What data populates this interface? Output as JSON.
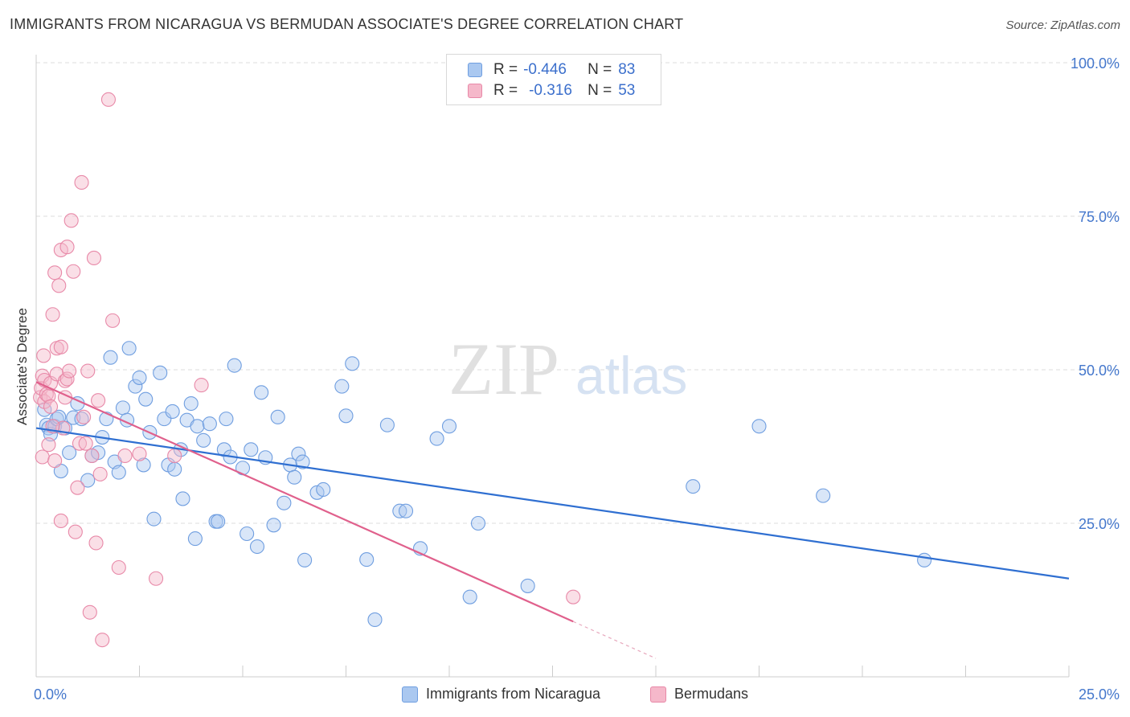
{
  "header": {
    "title": "IMMIGRANTS FROM NICARAGUA VS BERMUDAN ASSOCIATE'S DEGREE CORRELATION CHART",
    "source": "Source: ZipAtlas.com"
  },
  "watermark": {
    "zip": "ZIP",
    "atlas": "atlas"
  },
  "legend": {
    "r_label": "R =",
    "n_label": "N =",
    "rows": [
      {
        "r": "-0.446",
        "n": "83"
      },
      {
        "r": "-0.316",
        "n": "53"
      }
    ]
  },
  "colors": {
    "blue_fill": "#aac8f0",
    "blue_stroke": "#6f9ee0",
    "blue_line": "#2f6fd1",
    "pink_fill": "#f5b8ca",
    "pink_stroke": "#e889a8",
    "pink_line": "#e0608c",
    "tick_text": "#4477cc",
    "grid": "#dddddd"
  },
  "chart_data": {
    "type": "scatter",
    "title": "IMMIGRANTS FROM NICARAGUA VS BERMUDAN ASSOCIATE'S DEGREE CORRELATION CHART",
    "xlabel": "",
    "ylabel": "Associate's Degree",
    "xlim": [
      0,
      25
    ],
    "ylim": [
      0,
      100
    ],
    "x_tick_labels": [
      "0.0%",
      "25.0%"
    ],
    "y_tick_labels": [
      "100.0%",
      "75.0%",
      "50.0%",
      "25.0%"
    ],
    "y_ticks": [
      100,
      75,
      50,
      25
    ],
    "grid": true,
    "legend_position": "top-center",
    "series": [
      {
        "name": "Immigrants from Nicaragua",
        "color": "blue",
        "trend": {
          "x": [
            0,
            25
          ],
          "y": [
            40.5,
            16.0
          ]
        },
        "points": [
          [
            0.2,
            43.5
          ],
          [
            0.25,
            41.0
          ],
          [
            0.3,
            40.5
          ],
          [
            0.35,
            39.5
          ],
          [
            0.45,
            40.8
          ],
          [
            0.5,
            42.0
          ],
          [
            0.6,
            33.5
          ],
          [
            0.7,
            40.5
          ],
          [
            0.8,
            36.5
          ],
          [
            0.9,
            42.2
          ],
          [
            1.0,
            44.5
          ],
          [
            1.1,
            42.0
          ],
          [
            1.25,
            32.0
          ],
          [
            1.35,
            36.0
          ],
          [
            1.5,
            36.5
          ],
          [
            1.6,
            39.0
          ],
          [
            1.7,
            42.0
          ],
          [
            1.8,
            52.0
          ],
          [
            1.9,
            35.0
          ],
          [
            2.0,
            33.3
          ],
          [
            2.1,
            43.8
          ],
          [
            2.2,
            41.8
          ],
          [
            2.25,
            53.5
          ],
          [
            2.4,
            47.3
          ],
          [
            2.5,
            48.7
          ],
          [
            2.6,
            34.5
          ],
          [
            2.65,
            45.2
          ],
          [
            2.75,
            39.8
          ],
          [
            2.85,
            25.7
          ],
          [
            3.0,
            49.5
          ],
          [
            3.1,
            42.0
          ],
          [
            3.2,
            34.5
          ],
          [
            3.3,
            43.2
          ],
          [
            3.35,
            33.8
          ],
          [
            3.5,
            37.0
          ],
          [
            3.55,
            29.0
          ],
          [
            3.65,
            41.8
          ],
          [
            3.75,
            44.5
          ],
          [
            3.85,
            22.5
          ],
          [
            3.9,
            40.8
          ],
          [
            4.05,
            38.5
          ],
          [
            4.2,
            41.2
          ],
          [
            4.35,
            25.3
          ],
          [
            4.4,
            25.3
          ],
          [
            4.55,
            37.0
          ],
          [
            4.6,
            42.0
          ],
          [
            4.7,
            35.8
          ],
          [
            4.8,
            50.7
          ],
          [
            5.0,
            34.0
          ],
          [
            5.1,
            23.3
          ],
          [
            5.2,
            37.0
          ],
          [
            5.35,
            21.2
          ],
          [
            5.45,
            46.3
          ],
          [
            5.55,
            35.7
          ],
          [
            5.75,
            24.7
          ],
          [
            5.85,
            42.3
          ],
          [
            6.0,
            28.3
          ],
          [
            6.15,
            34.5
          ],
          [
            6.25,
            32.5
          ],
          [
            6.35,
            36.3
          ],
          [
            6.45,
            35.0
          ],
          [
            6.5,
            19.0
          ],
          [
            6.8,
            30.0
          ],
          [
            6.95,
            30.5
          ],
          [
            7.4,
            47.3
          ],
          [
            7.5,
            42.5
          ],
          [
            7.65,
            51.0
          ],
          [
            8.0,
            19.1
          ],
          [
            8.2,
            9.3
          ],
          [
            8.5,
            41.0
          ],
          [
            8.8,
            27.0
          ],
          [
            8.95,
            27.0
          ],
          [
            9.3,
            20.9
          ],
          [
            9.7,
            38.8
          ],
          [
            10.0,
            40.8
          ],
          [
            10.5,
            13.0
          ],
          [
            10.7,
            25.0
          ],
          [
            11.9,
            14.8
          ],
          [
            15.9,
            31.0
          ],
          [
            17.5,
            40.8
          ],
          [
            19.05,
            29.5
          ],
          [
            21.5,
            19.0
          ],
          [
            0.55,
            42.3
          ]
        ]
      },
      {
        "name": "Bermudans",
        "color": "pink",
        "trend": {
          "x": [
            0,
            15
          ],
          "y": [
            48.0,
            3.0
          ]
        },
        "points": [
          [
            0.1,
            45.5
          ],
          [
            0.12,
            47.0
          ],
          [
            0.15,
            49.0
          ],
          [
            0.15,
            35.8
          ],
          [
            0.18,
            52.3
          ],
          [
            0.2,
            48.3
          ],
          [
            0.2,
            44.8
          ],
          [
            0.25,
            46.0
          ],
          [
            0.3,
            37.8
          ],
          [
            0.3,
            45.7
          ],
          [
            0.35,
            47.8
          ],
          [
            0.35,
            44.0
          ],
          [
            0.4,
            59.0
          ],
          [
            0.45,
            65.8
          ],
          [
            0.45,
            35.2
          ],
          [
            0.5,
            49.3
          ],
          [
            0.5,
            53.5
          ],
          [
            0.55,
            63.7
          ],
          [
            0.6,
            53.7
          ],
          [
            0.6,
            69.5
          ],
          [
            0.6,
            25.4
          ],
          [
            0.65,
            40.5
          ],
          [
            0.7,
            48.2
          ],
          [
            0.7,
            45.5
          ],
          [
            0.75,
            70.0
          ],
          [
            0.75,
            48.5
          ],
          [
            0.8,
            49.8
          ],
          [
            0.85,
            74.3
          ],
          [
            0.9,
            66.0
          ],
          [
            0.95,
            23.6
          ],
          [
            1.0,
            30.8
          ],
          [
            1.05,
            38.0
          ],
          [
            1.1,
            80.5
          ],
          [
            1.15,
            42.3
          ],
          [
            1.2,
            38.0
          ],
          [
            1.25,
            49.8
          ],
          [
            1.3,
            10.5
          ],
          [
            1.35,
            36.0
          ],
          [
            1.4,
            68.2
          ],
          [
            1.45,
            21.8
          ],
          [
            1.5,
            45.0
          ],
          [
            1.55,
            33.0
          ],
          [
            1.6,
            6.0
          ],
          [
            1.75,
            94.0
          ],
          [
            1.85,
            58.0
          ],
          [
            2.0,
            17.8
          ],
          [
            2.15,
            36.0
          ],
          [
            2.5,
            36.3
          ],
          [
            2.9,
            16.0
          ],
          [
            3.35,
            36.0
          ],
          [
            4.0,
            47.5
          ],
          [
            13.0,
            13.0
          ],
          [
            0.4,
            40.8
          ]
        ]
      }
    ]
  },
  "bottom_legend": [
    {
      "label": "Immigrants from Nicaragua"
    },
    {
      "label": "Bermudans"
    }
  ]
}
